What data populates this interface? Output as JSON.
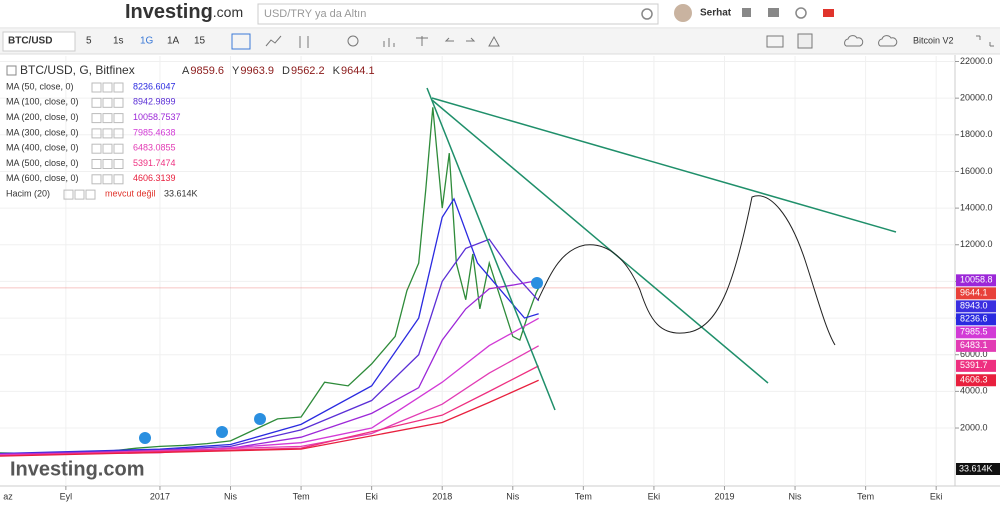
{
  "header": {
    "logo": "Investing",
    "logo_suffix": ".com",
    "search_placeholder": "USD/TRY ya da Altın",
    "user": "Serhat"
  },
  "toolbar": {
    "symbol": "BTC/USD",
    "intervals": [
      "5",
      "1s",
      "1G",
      "1A",
      "15"
    ],
    "template": "Bitcoin V2"
  },
  "legend": {
    "title": "BTC/USD, G, Bitfinex",
    "ohlc": [
      {
        "key": "A",
        "value": 9859.6
      },
      {
        "key": "Y",
        "value": 9963.9
      },
      {
        "key": "D",
        "value": 9562.2
      },
      {
        "key": "K",
        "value": 9644.1
      }
    ]
  },
  "volume": {
    "name": "Hacim (20)",
    "status": "mevcut değil",
    "legend_value": "33.614K",
    "tag_label": "33.614K"
  },
  "watermark": "Investing.com",
  "chart_data": {
    "type": "line",
    "xlim": [
      -6.8,
      33.8
    ],
    "ylim": [
      -1000,
      22300
    ],
    "grid": true,
    "xticks": [
      {
        "value": -7,
        "label": "az"
      },
      {
        "value": -4,
        "label": "Eyl"
      },
      {
        "value": 0,
        "label": "2017"
      },
      {
        "value": 3,
        "label": "Nis"
      },
      {
        "value": 6,
        "label": "Tem"
      },
      {
        "value": 9,
        "label": "Eki"
      },
      {
        "value": 12,
        "label": "2018"
      },
      {
        "value": 15,
        "label": "Nis"
      },
      {
        "value": 18,
        "label": "Tem"
      },
      {
        "value": 21,
        "label": "Eki"
      },
      {
        "value": 24,
        "label": "2019"
      },
      {
        "value": 27,
        "label": "Nis"
      },
      {
        "value": 30,
        "label": "Tem"
      },
      {
        "value": 33,
        "label": "Eki"
      }
    ],
    "yticks": [
      {
        "value": 2000,
        "label": "2000.0"
      },
      {
        "value": 4000,
        "label": "4000.0"
      },
      {
        "value": 6000,
        "label": "6000.0"
      },
      {
        "value": 8000,
        "label": "8000.0"
      },
      {
        "value": 10000,
        "label": "10000.0"
      },
      {
        "value": 12000,
        "label": "12000.0"
      },
      {
        "value": 14000,
        "label": "14000.0"
      },
      {
        "value": 16000,
        "label": "16000.0"
      },
      {
        "value": 18000,
        "label": "18000.0"
      },
      {
        "value": 20000,
        "label": "20000.0"
      },
      {
        "value": 22000,
        "label": "22000.0"
      }
    ],
    "series": [
      {
        "name": "BTC/USD",
        "color": "#2e8b3a",
        "tag": {
          "value": 9644.1,
          "label": "9644.1"
        },
        "tag_color": "#e8413a",
        "x": [
          -7,
          -5,
          -3,
          -1,
          0,
          1,
          2,
          3,
          4,
          5,
          6,
          7,
          8,
          9,
          10,
          10.5,
          11,
          11.3,
          11.6,
          12,
          12.3,
          12.6,
          13,
          13.3,
          13.6,
          14,
          14.5,
          15,
          15.3,
          15.6,
          16,
          16.1
        ],
        "values": [
          650,
          600,
          620,
          900,
          1000,
          1050,
          1150,
          1300,
          1900,
          2500,
          2600,
          4500,
          4300,
          5500,
          7000,
          9500,
          11000,
          15000,
          19500,
          14000,
          17000,
          11000,
          9000,
          11500,
          8500,
          11000,
          9000,
          7000,
          6800,
          8000,
          9400,
          9644.1
        ]
      },
      {
        "name": "MA (50, close, 0)",
        "legend_value": 8236.6047,
        "color": "#2a2ae0",
        "tag": {
          "value": 8236.6,
          "label": "8236.6"
        },
        "tag_color": "#2a2ae0",
        "x": [
          -7,
          0,
          3,
          6,
          9,
          11,
          12,
          12.5,
          13.5,
          14.5,
          15.5,
          16.1
        ],
        "values": [
          600,
          850,
          1100,
          2200,
          4300,
          8000,
          13500,
          14500,
          11000,
          9500,
          8000,
          8236.6
        ]
      },
      {
        "name": "MA (100, close, 0)",
        "legend_value": 8942.9899,
        "color": "#5b2fd6",
        "tag": {
          "value": 8943,
          "label": "8943.0"
        },
        "tag_color": "#3b2fe0",
        "x": [
          -7,
          0,
          3,
          6,
          9,
          11,
          12,
          13,
          14,
          15,
          16.1
        ],
        "values": [
          580,
          800,
          1000,
          1900,
          3500,
          6000,
          10000,
          11800,
          12300,
          10500,
          8943
        ]
      },
      {
        "name": "MA (200, close, 0)",
        "legend_value": 10058.7537,
        "color": "#9c27d8",
        "tag": {
          "value": 10058.8,
          "label": "10058.8"
        },
        "tag_color": "#9c27d8",
        "x": [
          -7,
          0,
          3,
          6,
          9,
          11,
          12,
          13,
          14,
          15,
          16.1
        ],
        "values": [
          560,
          720,
          900,
          1500,
          2800,
          4200,
          6800,
          8500,
          9600,
          9800,
          10058.8
        ]
      },
      {
        "name": "MA (300, close, 0)",
        "legend_value": 7985.4638,
        "color": "#d23ad6",
        "tag": {
          "value": 7985.5,
          "label": "7985.5"
        },
        "tag_color": "#d23ad6",
        "x": [
          -7,
          0,
          6,
          9,
          12,
          14,
          16.1
        ],
        "values": [
          550,
          650,
          1200,
          2000,
          4500,
          6500,
          7985.5
        ]
      },
      {
        "name": "MA (400, close, 0)",
        "legend_value": 6483.0855,
        "color": "#e23cb4",
        "tag": {
          "value": 6483.1,
          "label": "6483.1"
        },
        "tag_color": "#e23cb4",
        "x": [
          -7,
          6,
          9,
          12,
          14,
          16.1
        ],
        "values": [
          500,
          1000,
          1700,
          3300,
          5000,
          6483.1
        ]
      },
      {
        "name": "MA (500, close, 0)",
        "legend_value": 5391.7474,
        "color": "#ee3080",
        "tag": {
          "value": 5391.7,
          "label": "5391.7"
        },
        "tag_color": "#ee3080",
        "x": [
          -7,
          6,
          12,
          14,
          16.1
        ],
        "values": [
          480,
          900,
          2700,
          4000,
          5391.7
        ]
      },
      {
        "name": "MA (600, close, 0)",
        "legend_value": 4606.3139,
        "color": "#e8203e",
        "tag": {
          "value": 4606.3,
          "label": "4606.3"
        },
        "tag_color": "#e8203e",
        "x": [
          -7,
          6,
          12,
          14,
          16.1
        ],
        "values": [
          460,
          850,
          2300,
          3400,
          4606.3
        ]
      }
    ]
  }
}
